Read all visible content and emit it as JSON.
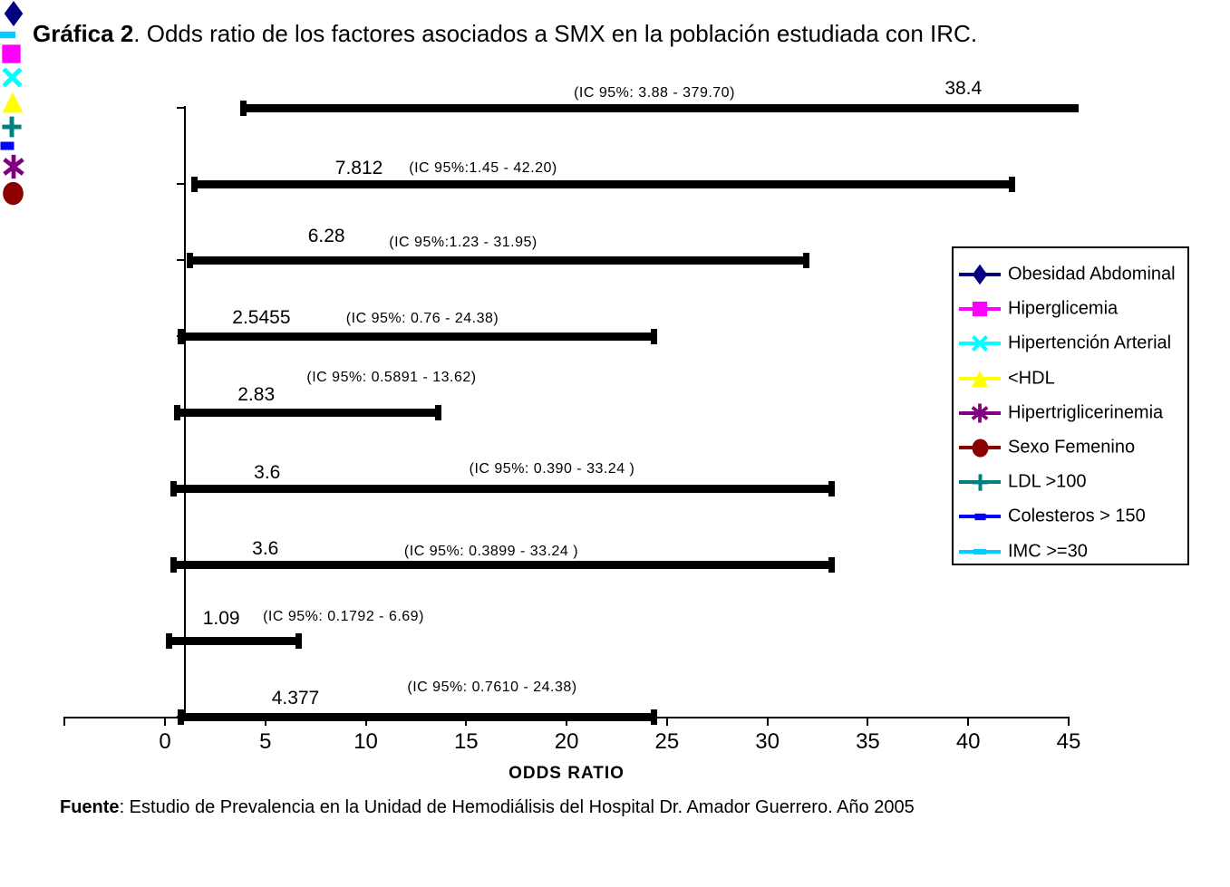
{
  "title": {
    "bold": "Gráfica 2",
    "rest": ". Odds ratio de los factores asociados a SMX en la población estudiada con IRC."
  },
  "footer": {
    "bold": "Fuente",
    "rest": ": Estudio de Prevalencia en la Unidad de Hemodiálisis del Hospital Dr. Amador Guerrero. Año 2005"
  },
  "chart_data": {
    "type": "scatter",
    "subtype": "odds-ratio-forest-plot",
    "title": "Gráfica 2. Odds ratio de los factores asociados a SMX en la población estudiada con IRC.",
    "xlabel": "ODDS RATIO",
    "grid": false,
    "legend_position": "right",
    "reference_line_x": 1,
    "x_axis": {
      "min": -5,
      "max": 45,
      "tick_step": 5,
      "tick_values": [
        0,
        5,
        10,
        15,
        20,
        25,
        30,
        35,
        40,
        45
      ],
      "tick_labels": [
        "0",
        "5",
        "10",
        "15",
        "20",
        "25",
        "30",
        "35",
        "40",
        "45"
      ]
    },
    "series": [
      {
        "name": "Obesidad Abdominal",
        "value": 38.4,
        "value_label": "38.4",
        "ci_low": 3.88,
        "ci_high": 379.7,
        "ci_label": "(IC 95%: 3.88 - 379.70)",
        "marker": "diamond",
        "color": "#000080"
      },
      {
        "name": "IMC >=30",
        "value": 7.812,
        "value_label": "7.812",
        "ci_low": 1.45,
        "ci_high": 42.2,
        "ci_label": "(IC 95%:1.45 - 42.20)",
        "marker": "dash",
        "color": "#00CCFF"
      },
      {
        "name": "Hiperglicemia",
        "value": 6.28,
        "value_label": "6.28",
        "ci_low": 1.23,
        "ci_high": 31.95,
        "ci_label": "(IC 95%:1.23 - 31.95)",
        "marker": "square",
        "color": "#FF00FF"
      },
      {
        "name": "Hipertención Arterial",
        "value": 2.5455,
        "value_label": "2.5455",
        "ci_low": 0.76,
        "ci_high": 24.38,
        "ci_label": "(IC 95%: 0.76 - 24.38)",
        "marker": "x",
        "color": "#00FFFF"
      },
      {
        "name": "<HDL",
        "value": 2.83,
        "value_label": "2.83",
        "ci_low": 0.5891,
        "ci_high": 13.62,
        "ci_label": "(IC 95%: 0.5891 - 13.62)",
        "marker": "triangle",
        "color": "#FFFF00"
      },
      {
        "name": "LDL >100",
        "value": 3.6,
        "value_label": "3.6",
        "ci_low": 0.39,
        "ci_high": 33.24,
        "ci_label": "(IC 95%: 0.390  - 33.24 )",
        "marker": "plus",
        "color": "#008080"
      },
      {
        "name": "Colesteros > 150",
        "value": 3.6,
        "value_label": "3.6",
        "ci_low": 0.3899,
        "ci_high": 33.24,
        "ci_label": "(IC 95%: 0.3899 - 33.24 )",
        "marker": "dash-square",
        "color": "#0000FF"
      },
      {
        "name": "Hipertriglicerinemia",
        "value": 1.09,
        "value_label": "1.09",
        "ci_low": 0.1792,
        "ci_high": 6.69,
        "ci_label": "(IC 95%: 0.1792 - 6.69)",
        "marker": "asterisk",
        "color": "#800080"
      },
      {
        "name": "Sexo Femenino",
        "value": 4.377,
        "value_label": "4.377",
        "ci_low": 0.761,
        "ci_high": 24.38,
        "ci_label": "(IC 95%: 0.7610 - 24.38)",
        "marker": "circle",
        "color": "#8B0000"
      }
    ]
  },
  "legend": {
    "items": [
      {
        "label": "Obesidad Abdominal",
        "marker": "diamond",
        "color": "#000080"
      },
      {
        "label": "Hiperglicemia",
        "marker": "square",
        "color": "#FF00FF"
      },
      {
        "label": "Hipertención Arterial",
        "marker": "x",
        "color": "#00FFFF"
      },
      {
        "label": "<HDL",
        "marker": "triangle",
        "color": "#FFFF00"
      },
      {
        "label": "Hipertriglicerinemia",
        "marker": "asterisk",
        "color": "#800080"
      },
      {
        "label": "Sexo Femenino",
        "marker": "circle",
        "color": "#8B0000"
      },
      {
        "label": "LDL >100",
        "marker": "plus",
        "color": "#008080"
      },
      {
        "label": "Colesteros > 150",
        "marker": "dash-square",
        "color": "#0000FF"
      },
      {
        "label": "IMC >=30",
        "marker": "dash",
        "color": "#00CCFF"
      }
    ]
  }
}
